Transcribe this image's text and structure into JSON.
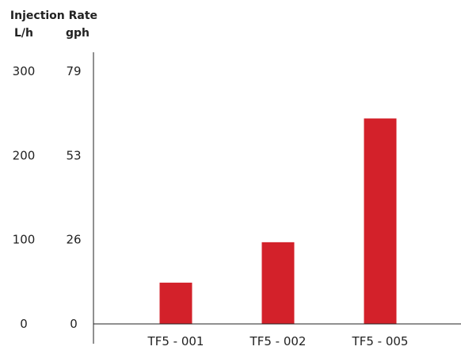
{
  "chart_data": {
    "type": "bar",
    "title": "Injection Rate",
    "categories": [
      "TF5 - 001",
      "TF5 - 002",
      "TF5 - 005"
    ],
    "values": [
      49,
      97,
      244
    ],
    "bar_color": "#d3212a",
    "axis_color": "#222222",
    "ylim": [
      0,
      300
    ],
    "grid": false,
    "y_axes": [
      {
        "unit": "L/h",
        "tick_values": [
          0,
          100,
          200,
          300
        ],
        "tick_labels": [
          "0",
          "100",
          "200",
          "300"
        ]
      },
      {
        "unit": "gph",
        "tick_values": [
          0,
          100,
          200,
          300
        ],
        "tick_labels": [
          "0",
          "26",
          "53",
          "79"
        ]
      }
    ]
  }
}
